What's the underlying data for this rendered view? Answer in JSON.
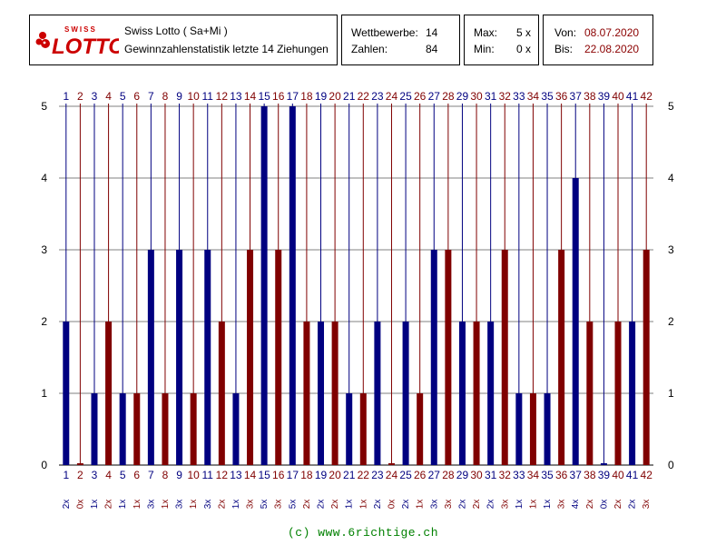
{
  "header": {
    "logo_small": "SWISS",
    "logo_big": "LOTTO",
    "title_line1": "Swiss Lotto ( Sa+Mi )",
    "title_line2": "Gewinnzahlenstatistik letzte 14 Ziehungen",
    "wettbewerbe_label": "Wettbewerbe:",
    "wettbewerbe_value": "14",
    "zahlen_label": "Zahlen:",
    "zahlen_value": "84",
    "max_label": "Max:",
    "max_value": "5 x",
    "min_label": "Min:",
    "min_value": "0 x",
    "von_label": "Von:",
    "von_value": "08.07.2020",
    "bis_label": "Bis:",
    "bis_value": "22.08.2020"
  },
  "footer": "(c) www.6richtige.ch",
  "colors": {
    "odd_series": "#000080",
    "even_series": "#800000",
    "grid": "#808080",
    "accent_red": "#cc0000"
  },
  "chart_data": {
    "type": "bar",
    "categories": [
      "1",
      "2",
      "3",
      "4",
      "5",
      "6",
      "7",
      "8",
      "9",
      "10",
      "11",
      "12",
      "13",
      "14",
      "15",
      "16",
      "17",
      "18",
      "19",
      "20",
      "21",
      "22",
      "23",
      "24",
      "25",
      "26",
      "27",
      "28",
      "29",
      "30",
      "31",
      "32",
      "33",
      "34",
      "35",
      "36",
      "37",
      "38",
      "39",
      "40",
      "41",
      "42"
    ],
    "values": [
      2,
      0,
      1,
      2,
      1,
      1,
      3,
      1,
      3,
      1,
      3,
      2,
      1,
      3,
      5,
      3,
      5,
      2,
      2,
      2,
      1,
      1,
      2,
      0,
      2,
      1,
      3,
      3,
      2,
      2,
      2,
      3,
      1,
      1,
      1,
      3,
      4,
      2,
      0,
      2,
      2,
      3
    ],
    "count_labels": [
      "2x",
      "0x",
      "1x",
      "2x",
      "1x",
      "1x",
      "3x",
      "1x",
      "3x",
      "1x",
      "3x",
      "2x",
      "1x",
      "3x",
      "5x",
      "3x",
      "5x",
      "2x",
      "2x",
      "2x",
      "1x",
      "1x",
      "2x",
      "0x",
      "2x",
      "1x",
      "3x",
      "3x",
      "2x",
      "2x",
      "2x",
      "3x",
      "1x",
      "1x",
      "1x",
      "3x",
      "4x",
      "2x",
      "0x",
      "2x",
      "2x",
      "3x"
    ],
    "ylim": [
      0,
      5
    ],
    "yticks": [
      "0",
      "1",
      "2",
      "3",
      "4",
      "5"
    ],
    "grid": true
  }
}
